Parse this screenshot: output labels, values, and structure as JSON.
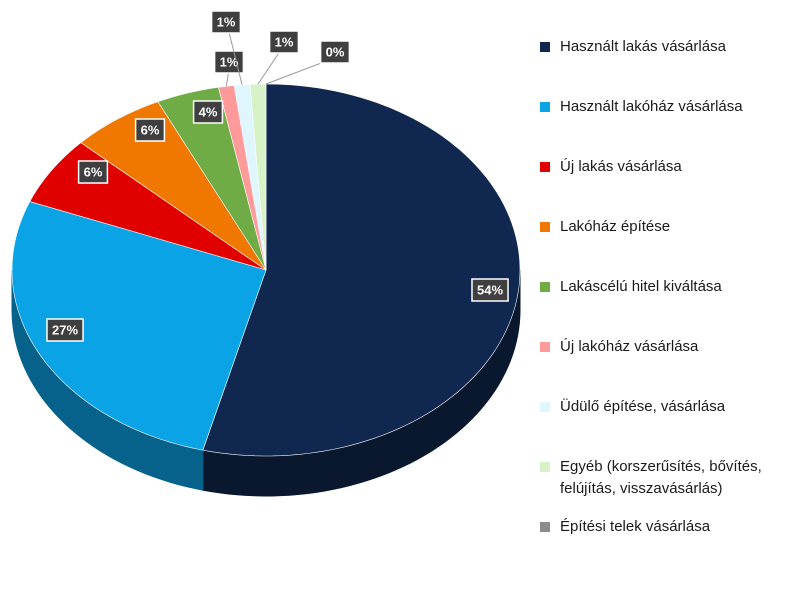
{
  "chart_data": {
    "type": "pie",
    "categories": [
      "Használt lakás vásárlása",
      "Használt lakóház vásárlása",
      "Új lakás vásárlása",
      "Lakóház építése",
      "Lakáscélú hitel kiváltása",
      "Új lakóház vásárlása",
      "Üdülő építése, vásárlása",
      "Egyéb (korszerűsítés, bővítés, felújítás, visszavásárlás)",
      "Építési telek vásárlása"
    ],
    "values": [
      54,
      27,
      6,
      6,
      4,
      1,
      1,
      1,
      0
    ],
    "value_labels": [
      "54%",
      "27%",
      "6%",
      "6%",
      "4%",
      "1%",
      "1%",
      "1%",
      "0%"
    ],
    "colors": [
      "#10284f",
      "#0aa3e6",
      "#e00000",
      "#f07800",
      "#6fac46",
      "#ff9a9a",
      "#dff6ff",
      "#d6f2c6",
      "#8c8c8c"
    ],
    "legend": "right"
  }
}
